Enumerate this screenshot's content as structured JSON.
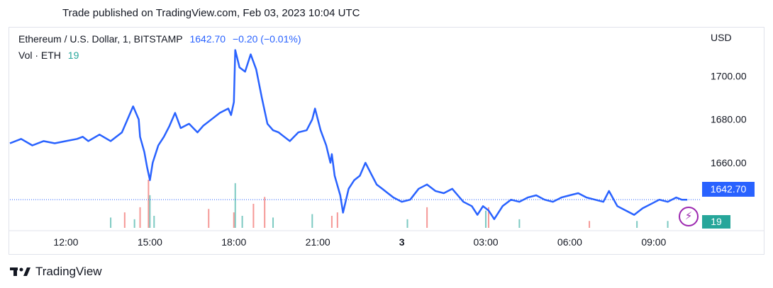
{
  "caption": "Trade published on TradingView.com, Feb 03, 2023 10:04 UTC",
  "legend": {
    "symbol": "Ethereum / U.S. Dollar, 1, BITSTAMP",
    "last": "1642.70",
    "change": "−0.20 (−0.01%)",
    "vol_label": "Vol · ETH",
    "vol_value": "19"
  },
  "price_scale": {
    "currency": "USD",
    "last_tag": "1642.70",
    "vol_tag": "19"
  },
  "footer": {
    "brand": "TradingView"
  },
  "colors": {
    "line": "#2962ff",
    "vol_up": "#26a69a",
    "vol_down": "#ef5350",
    "accent": "#9c27b0"
  },
  "icons": {
    "alert": "lightning-bolt-icon",
    "logo": "tradingview-logo-icon"
  },
  "chart_data": {
    "type": "line",
    "title": "Ethereum / U.S. Dollar, 1, BITSTAMP",
    "ylabel": "USD",
    "xlabel": "",
    "ylim": [
      1630,
      1722
    ],
    "y_ticks": [
      1660,
      1680,
      1700
    ],
    "x_ticks": [
      "12:00",
      "15:00",
      "18:00",
      "21:00",
      "3",
      "03:00",
      "06:00",
      "09:00"
    ],
    "x_tick_pos": [
      2,
      5,
      8,
      11,
      14,
      17,
      20,
      23
    ],
    "x_range": [
      0,
      24.6
    ],
    "series": [
      {
        "x": [
          0,
          0.4,
          0.8,
          1.2,
          1.6,
          2.0,
          2.4,
          2.6,
          2.8,
          3.2,
          3.6,
          4.0,
          4.2,
          4.4,
          4.6,
          4.65,
          4.8,
          4.9,
          5.0,
          5.1,
          5.3,
          5.5,
          5.7,
          5.9,
          6.1,
          6.4,
          6.7,
          6.9,
          7.2,
          7.5,
          7.8,
          7.9,
          8.0,
          8.05,
          8.2,
          8.4,
          8.6,
          8.8,
          9.0,
          9.2,
          9.4,
          9.6,
          9.8,
          10.0,
          10.3,
          10.6,
          10.8,
          10.9,
          11.1,
          11.3,
          11.45,
          11.5,
          11.6,
          11.8,
          11.9,
          12.1,
          12.3,
          12.5,
          12.7,
          12.9,
          13.1,
          13.3,
          13.5,
          13.7,
          14.0,
          14.3,
          14.6,
          14.9,
          15.2,
          15.5,
          15.8,
          16.0,
          16.2,
          16.5,
          16.7,
          16.9,
          17.1,
          17.3,
          17.6,
          17.9,
          18.2,
          18.5,
          18.8,
          19.1,
          19.4,
          19.7,
          20.0,
          20.3,
          20.6,
          20.9,
          21.2,
          21.4,
          21.7,
          22.0,
          22.3,
          22.6,
          22.9,
          23.2,
          23.5,
          23.8,
          24.0,
          24.2
        ],
        "values": [
          1669,
          1671,
          1668,
          1670,
          1669,
          1670,
          1671,
          1672,
          1670,
          1673,
          1670,
          1674,
          1680,
          1686,
          1680,
          1672,
          1665,
          1658,
          1652,
          1660,
          1668,
          1672,
          1677,
          1683,
          1676,
          1678,
          1674,
          1677,
          1680,
          1683,
          1685,
          1682,
          1688,
          1712,
          1704,
          1702,
          1710,
          1703,
          1690,
          1678,
          1675,
          1674,
          1672,
          1670,
          1674,
          1675,
          1680,
          1685,
          1675,
          1668,
          1660,
          1664,
          1654,
          1645,
          1637,
          1648,
          1652,
          1654,
          1660,
          1655,
          1650,
          1648,
          1646,
          1644,
          1642,
          1643,
          1648,
          1650,
          1647,
          1646,
          1648,
          1645,
          1642,
          1640,
          1636,
          1640,
          1638,
          1634,
          1640,
          1643,
          1642,
          1644,
          1645,
          1643,
          1642,
          1644,
          1645,
          1646,
          1644,
          1643,
          1642,
          1647,
          1640,
          1638,
          1636,
          1639,
          1641,
          1643,
          1642,
          1644,
          1643,
          1643
        ]
      }
    ],
    "volume": {
      "label": "Vol · ETH",
      "x": [
        3.6,
        4.1,
        4.45,
        4.65,
        4.95,
        5.0,
        5.15,
        7.1,
        8.0,
        8.05,
        8.3,
        8.7,
        9.1,
        9.4,
        10.8,
        11.5,
        11.7,
        14.2,
        14.9,
        17.0,
        17.1,
        18.2,
        20.7,
        22.4,
        23.5
      ],
      "values": [
        6,
        9,
        5,
        12,
        28,
        19,
        7,
        11,
        9,
        26,
        7,
        14,
        18,
        6,
        8,
        7,
        9,
        5,
        12,
        10,
        12,
        5,
        4,
        4,
        4
      ],
      "up": [
        true,
        false,
        true,
        false,
        false,
        true,
        true,
        false,
        false,
        true,
        true,
        false,
        false,
        true,
        true,
        false,
        false,
        true,
        false,
        true,
        false,
        true,
        false,
        true,
        true
      ]
    }
  }
}
